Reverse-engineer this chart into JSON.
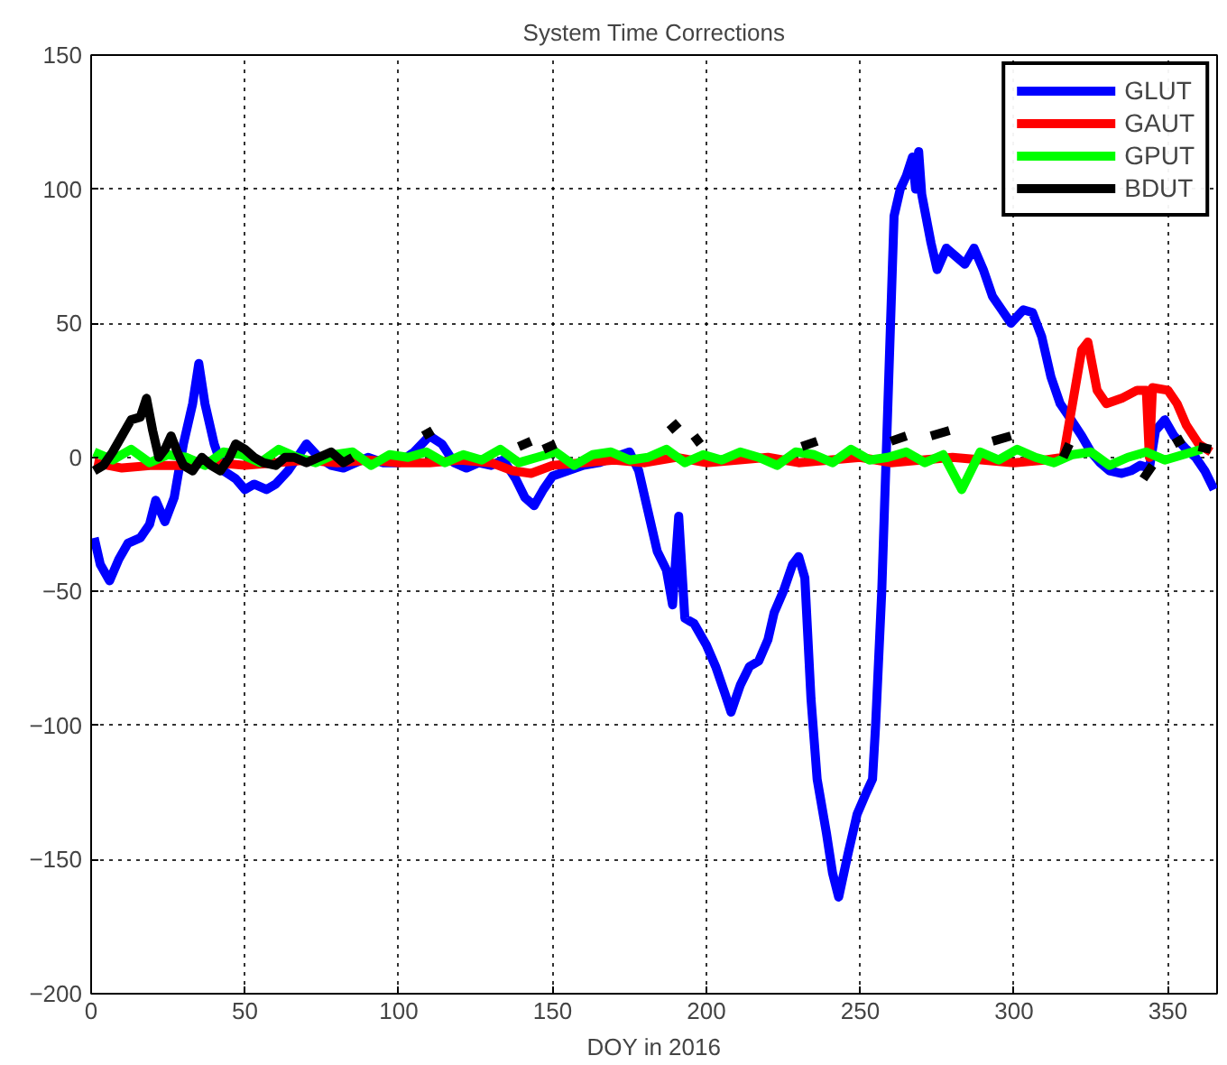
{
  "chart_data": {
    "type": "line",
    "title": "System Time Corrections",
    "xlabel": "DOY in 2016",
    "xlim": [
      0,
      366
    ],
    "ylim": [
      -200,
      150
    ],
    "xticks": [
      0,
      50,
      100,
      150,
      200,
      250,
      300,
      350
    ],
    "yticks": [
      -200,
      -150,
      -100,
      -50,
      0,
      50,
      100,
      150
    ],
    "grid": true,
    "legend": "top right",
    "line_style": "solid",
    "marker": "none",
    "series": [
      {
        "name": "GLUT",
        "color": "#0000ff",
        "x": [
          1,
          3,
          6,
          9,
          12,
          16,
          19,
          21,
          24,
          27,
          30,
          33,
          35,
          37,
          40,
          43,
          47,
          50,
          53,
          57,
          60,
          64,
          67,
          70,
          74,
          78,
          82,
          86,
          90,
          95,
          100,
          105,
          110,
          114,
          118,
          122,
          126,
          130,
          134,
          138,
          141,
          144,
          147,
          150,
          155,
          160,
          165,
          170,
          175,
          178,
          181,
          184,
          187,
          189,
          191,
          193,
          196,
          200,
          203,
          206,
          208,
          211,
          214,
          217,
          220,
          222,
          225,
          228,
          230,
          232,
          234,
          236,
          239,
          241,
          243,
          246,
          249,
          252,
          254,
          255,
          257,
          259,
          261,
          263,
          265,
          267,
          268,
          269,
          270,
          273,
          275,
          278,
          281,
          284,
          287,
          290,
          293,
          296,
          299,
          303,
          306,
          309,
          312,
          315,
          318,
          322,
          325,
          328,
          331,
          335,
          338,
          341,
          344,
          346,
          349,
          352,
          356,
          359,
          362,
          365
        ],
        "values": [
          -30,
          -40,
          -46,
          -38,
          -32,
          -30,
          -25,
          -16,
          -24,
          -15,
          5,
          20,
          35,
          20,
          5,
          -5,
          -8,
          -12,
          -10,
          -12,
          -10,
          -5,
          0,
          5,
          0,
          -3,
          -4,
          -2,
          0,
          -2,
          -2,
          2,
          8,
          5,
          -2,
          -4,
          -2,
          -3,
          -1,
          -8,
          -15,
          -18,
          -12,
          -7,
          -5,
          -3,
          -2,
          0,
          2,
          -5,
          -20,
          -35,
          -42,
          -55,
          -22,
          -60,
          -62,
          -70,
          -78,
          -88,
          -95,
          -85,
          -78,
          -76,
          -68,
          -58,
          -50,
          -40,
          -37,
          -45,
          -90,
          -120,
          -140,
          -155,
          -164,
          -148,
          -133,
          -125,
          -120,
          -100,
          -50,
          20,
          90,
          100,
          105,
          112,
          100,
          114,
          98,
          80,
          70,
          78,
          75,
          72,
          78,
          70,
          60,
          55,
          50,
          55,
          54,
          45,
          30,
          20,
          15,
          8,
          2,
          -2,
          -5,
          -6,
          -5,
          -3,
          -4,
          10,
          14,
          8,
          3,
          0,
          -5,
          -12
        ]
      },
      {
        "name": "GAUT",
        "color": "#ff0000",
        "x": [
          1,
          10,
          20,
          30,
          40,
          50,
          60,
          70,
          80,
          90,
          100,
          110,
          120,
          130,
          137,
          143,
          150,
          160,
          170,
          180,
          190,
          200,
          210,
          220,
          230,
          240,
          250,
          260,
          270,
          280,
          290,
          300,
          310,
          316,
          319,
          322,
          324,
          327,
          330,
          335,
          340,
          343,
          344,
          345,
          350,
          353,
          356,
          360,
          364
        ],
        "values": [
          -2,
          -4,
          -3,
          -3,
          -2,
          -3,
          -2,
          -1,
          -2,
          -1,
          -2,
          -2,
          -1,
          -2,
          -5,
          -6,
          -3,
          -2,
          -1,
          -2,
          0,
          -2,
          -1,
          0,
          -2,
          -1,
          0,
          -2,
          -1,
          0,
          -1,
          -2,
          -1,
          0,
          20,
          40,
          43,
          25,
          20,
          22,
          25,
          25,
          0,
          26,
          25,
          20,
          12,
          5,
          2
        ]
      },
      {
        "name": "GPUT",
        "color": "#00ff00",
        "x": [
          1,
          7,
          13,
          19,
          25,
          31,
          37,
          43,
          49,
          55,
          61,
          67,
          73,
          79,
          85,
          91,
          97,
          103,
          109,
          115,
          121,
          127,
          133,
          139,
          145,
          151,
          157,
          163,
          169,
          175,
          181,
          187,
          193,
          199,
          205,
          211,
          217,
          223,
          229,
          235,
          241,
          247,
          253,
          259,
          265,
          271,
          277,
          283,
          289,
          295,
          301,
          307,
          313,
          319,
          325,
          331,
          337,
          343,
          349,
          355,
          361
        ],
        "values": [
          2,
          -1,
          3,
          -2,
          1,
          0,
          -3,
          2,
          1,
          -2,
          3,
          0,
          -2,
          1,
          2,
          -3,
          1,
          0,
          2,
          -2,
          1,
          -1,
          3,
          -2,
          0,
          2,
          -3,
          1,
          2,
          -1,
          0,
          3,
          -2,
          1,
          -1,
          2,
          0,
          -3,
          2,
          1,
          -2,
          3,
          -1,
          0,
          2,
          -2,
          1,
          -12,
          2,
          -1,
          3,
          0,
          -2,
          1,
          2,
          -3,
          0,
          2,
          -1,
          1,
          3
        ]
      },
      {
        "name": "BDUT",
        "color": "#000000",
        "x": [
          1,
          4,
          7,
          10,
          13,
          16,
          18,
          20,
          22,
          24,
          26,
          28,
          30,
          33,
          36,
          39,
          42,
          45,
          47,
          50,
          53,
          56,
          60,
          63,
          66,
          70,
          74,
          78,
          82,
          85,
          87,
          108,
          111,
          112,
          139,
          143,
          144,
          147,
          151,
          152,
          188,
          191,
          192,
          196,
          198,
          199,
          231,
          236,
          237,
          260,
          265,
          266,
          273,
          279,
          280,
          293,
          299,
          300,
          316,
          318,
          319,
          342,
          345,
          346,
          352,
          355,
          356,
          360,
          364
        ],
        "values": [
          -5,
          -3,
          2,
          8,
          14,
          15,
          22,
          10,
          0,
          3,
          8,
          2,
          -3,
          -5,
          0,
          -3,
          -5,
          0,
          5,
          3,
          0,
          -2,
          -3,
          0,
          0,
          -2,
          0,
          2,
          -2,
          0,
          null,
          8,
          10,
          null,
          4,
          6,
          null,
          3,
          5,
          null,
          10,
          13,
          null,
          8,
          5,
          null,
          4,
          6,
          null,
          6,
          8,
          null,
          8,
          10,
          null,
          6,
          8,
          null,
          0,
          5,
          null,
          -8,
          -3,
          null,
          5,
          7,
          null,
          4,
          3
        ]
      }
    ]
  }
}
